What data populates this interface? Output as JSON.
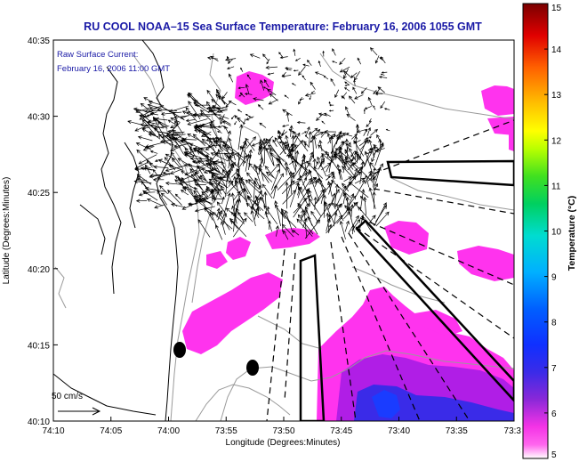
{
  "chart_data": {
    "type": "heatmap",
    "title": "RU COOL  NOAA–15  Sea Surface Temperature:  February 16, 2006 1055 GMT",
    "annotation_lines": [
      "Raw Surface Current:",
      "February 16, 2006 11:00 GMT"
    ],
    "scale_label": "50 cm/s",
    "xlabel": "Longitude (Degrees:Minutes)",
    "ylabel": "Latitude (Degrees:Minutes)",
    "x_ticks": [
      "74:10",
      "74:05",
      "74:00",
      "73:55",
      "73:50",
      "73:45",
      "73:40",
      "73:35",
      "73:3"
    ],
    "y_ticks": [
      "40:35",
      "40:30",
      "40:25",
      "40:20",
      "40:15",
      "40:10"
    ],
    "colorbar": {
      "label": "Temperature (°C)",
      "ticks": [
        "15",
        "14",
        "13",
        "12",
        "11",
        "10",
        "9",
        "8",
        "7",
        "6",
        "5"
      ],
      "range": [
        5,
        15
      ]
    },
    "temperature_patches": [
      {
        "region": "north-central patch",
        "lon": "73:56",
        "lat": "40:32",
        "temp_c": 5.0
      },
      {
        "region": "mid-shelf band",
        "lon": "73:51",
        "lat": "40:22",
        "temp_c": 5.1
      },
      {
        "region": "southwest patch",
        "lon": "73:57",
        "lat": "40:16",
        "temp_c": 5.3
      },
      {
        "region": "southeast warm core",
        "lon": "73:39",
        "lat": "40:12",
        "temp_c": 5.6
      },
      {
        "region": "southeast cold spot",
        "lon": "73:41",
        "lat": "40:10",
        "temp_c": 6.6
      }
    ],
    "grid": false,
    "legend": "colorbar-right"
  },
  "colors": {
    "title": "#1a1aa6",
    "sst_low": "#ff33ee",
    "sst_mid": "#b01ee6",
    "sst_deep": "#3a2be8",
    "sst_cold": "#1a3cff",
    "coast": "#000000",
    "contour": "#9a9a9a",
    "vector": "#000000"
  }
}
